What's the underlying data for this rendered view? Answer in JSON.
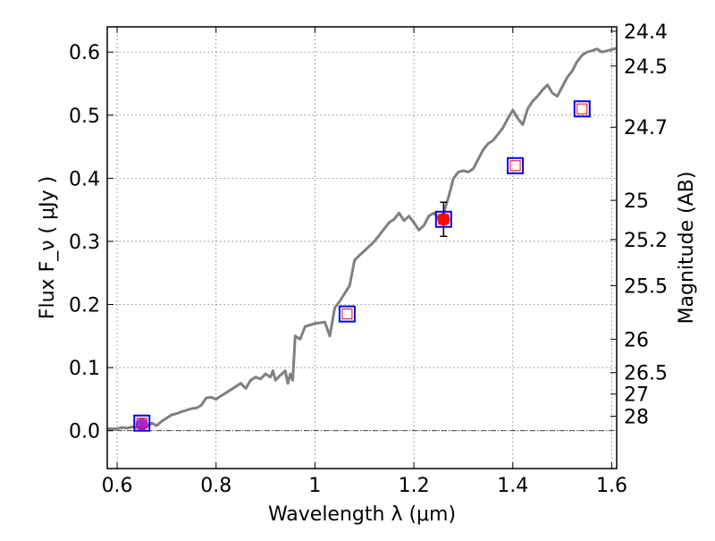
{
  "chart_data": {
    "type": "line",
    "xlabel": "Wavelength  λ (μm)",
    "ylabel": "Flux  F_ν  ( μJy )",
    "ylabel_right": "Magnitude (AB)",
    "xlim": [
      0.58,
      1.61
    ],
    "ylim": [
      -0.06,
      0.64
    ],
    "x_ticks": [
      0.6,
      0.8,
      1.0,
      1.2,
      1.4,
      1.6
    ],
    "x_tick_labels": [
      "0.6",
      "0.8",
      "1",
      "1.2",
      "1.4",
      "1.6"
    ],
    "y_ticks": [
      0.0,
      0.1,
      0.2,
      0.3,
      0.4,
      0.5,
      0.6
    ],
    "y_tick_labels": [
      "0.0",
      "0.1",
      "0.2",
      "0.3",
      "0.4",
      "0.5",
      "0.6"
    ],
    "right_axis_ticks": [
      {
        "label": "24.4",
        "flux": 0.633
      },
      {
        "label": "24.5",
        "flux": 0.578
      },
      {
        "label": "24.7",
        "flux": 0.481
      },
      {
        "label": "25",
        "flux": 0.365
      },
      {
        "label": "25.2",
        "flux": 0.303
      },
      {
        "label": "25.5",
        "flux": 0.23
      },
      {
        "label": "26",
        "flux": 0.145
      },
      {
        "label": "26.5",
        "flux": 0.092
      },
      {
        "label": "27",
        "flux": 0.058
      },
      {
        "label": "28",
        "flux": 0.023
      }
    ],
    "grid": true,
    "zero_line": true,
    "colors": {
      "spectrum": "#808080",
      "model_box": "#0000ff",
      "model_inner": "#ff0000",
      "detection": "#ff0000",
      "low_detection": "#a020f0",
      "errorbar": "#000000"
    },
    "spectrum": {
      "x": [
        0.58,
        0.6,
        0.61,
        0.62,
        0.63,
        0.64,
        0.65,
        0.66,
        0.67,
        0.68,
        0.69,
        0.7,
        0.71,
        0.72,
        0.73,
        0.75,
        0.76,
        0.77,
        0.78,
        0.79,
        0.8,
        0.81,
        0.82,
        0.83,
        0.85,
        0.86,
        0.87,
        0.88,
        0.89,
        0.9,
        0.91,
        0.915,
        0.92,
        0.93,
        0.94,
        0.945,
        0.95,
        0.955,
        0.96,
        0.97,
        0.975,
        0.98,
        1.0,
        1.02,
        1.03,
        1.04,
        1.05,
        1.07,
        1.08,
        1.09,
        1.1,
        1.12,
        1.13,
        1.14,
        1.15,
        1.16,
        1.17,
        1.18,
        1.19,
        1.2,
        1.21,
        1.22,
        1.23,
        1.24,
        1.25,
        1.26,
        1.27,
        1.28,
        1.29,
        1.3,
        1.31,
        1.32,
        1.33,
        1.34,
        1.35,
        1.36,
        1.37,
        1.38,
        1.39,
        1.4,
        1.41,
        1.42,
        1.43,
        1.44,
        1.45,
        1.46,
        1.47,
        1.48,
        1.49,
        1.5,
        1.51,
        1.52,
        1.53,
        1.54,
        1.55,
        1.56,
        1.57,
        1.58,
        1.59,
        1.6,
        1.61
      ],
      "y": [
        0.003,
        0.003,
        0.005,
        0.004,
        0.006,
        0.005,
        0.007,
        0.006,
        0.012,
        0.008,
        0.015,
        0.02,
        0.025,
        0.027,
        0.03,
        0.035,
        0.036,
        0.04,
        0.052,
        0.053,
        0.05,
        0.055,
        0.06,
        0.065,
        0.075,
        0.067,
        0.08,
        0.085,
        0.082,
        0.09,
        0.085,
        0.095,
        0.08,
        0.088,
        0.095,
        0.075,
        0.09,
        0.08,
        0.15,
        0.145,
        0.155,
        0.165,
        0.17,
        0.172,
        0.15,
        0.195,
        0.205,
        0.23,
        0.27,
        0.278,
        0.285,
        0.3,
        0.31,
        0.32,
        0.33,
        0.335,
        0.345,
        0.333,
        0.34,
        0.33,
        0.318,
        0.325,
        0.34,
        0.345,
        0.337,
        0.345,
        0.37,
        0.4,
        0.41,
        0.412,
        0.41,
        0.415,
        0.43,
        0.445,
        0.455,
        0.46,
        0.47,
        0.48,
        0.495,
        0.508,
        0.495,
        0.485,
        0.51,
        0.522,
        0.53,
        0.54,
        0.548,
        0.535,
        0.53,
        0.545,
        0.56,
        0.57,
        0.585,
        0.595,
        0.6,
        0.602,
        0.605,
        0.6,
        0.602,
        0.604,
        0.606
      ]
    },
    "model_points": [
      {
        "x": 0.65,
        "y": 0.012
      },
      {
        "x": 1.065,
        "y": 0.185
      },
      {
        "x": 1.26,
        "y": 0.335
      },
      {
        "x": 1.405,
        "y": 0.42
      },
      {
        "x": 1.54,
        "y": 0.51
      }
    ],
    "detections": [
      {
        "x": 0.65,
        "y": 0.01,
        "yerr": 0.004,
        "color": "purple"
      },
      {
        "x": 1.26,
        "y": 0.335,
        "yerr": 0.027,
        "color": "red"
      }
    ]
  }
}
